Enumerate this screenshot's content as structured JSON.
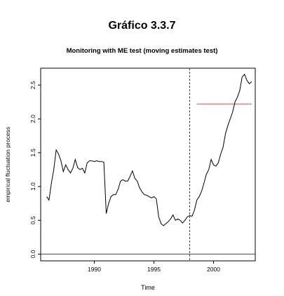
{
  "page": {
    "title": "Gráfico 3.3.7"
  },
  "chart_data": {
    "type": "line",
    "title": "Monitoring with ME test (moving estimates test)",
    "xlabel": "Time",
    "ylabel": "empirical fluctuation process",
    "xlim": [
      1985.5,
      2003.5
    ],
    "ylim": [
      -0.1,
      2.75
    ],
    "xticks": [
      1990,
      1995,
      2000
    ],
    "yticks": [
      0.0,
      0.5,
      1.0,
      1.5,
      2.0,
      2.5
    ],
    "ytick_labels": [
      "0.0",
      "0.5",
      "1.0",
      "1.5",
      "2.0",
      "2.5"
    ],
    "grid": false,
    "legend": "none",
    "series": [
      {
        "color": "#000000",
        "points": [
          [
            1986.0,
            0.85
          ],
          [
            1986.2,
            0.8
          ],
          [
            1986.4,
            1.05
          ],
          [
            1986.6,
            1.25
          ],
          [
            1986.8,
            1.54
          ],
          [
            1987.0,
            1.48
          ],
          [
            1987.2,
            1.38
          ],
          [
            1987.4,
            1.22
          ],
          [
            1987.6,
            1.32
          ],
          [
            1987.8,
            1.25
          ],
          [
            1988.0,
            1.2
          ],
          [
            1988.2,
            1.27
          ],
          [
            1988.4,
            1.4
          ],
          [
            1988.6,
            1.28
          ],
          [
            1988.8,
            1.25
          ],
          [
            1989.0,
            1.27
          ],
          [
            1989.2,
            1.2
          ],
          [
            1989.4,
            1.35
          ],
          [
            1989.6,
            1.38
          ],
          [
            1989.8,
            1.38
          ],
          [
            1990.0,
            1.37
          ],
          [
            1990.2,
            1.38
          ],
          [
            1990.4,
            1.37
          ],
          [
            1990.6,
            1.37
          ],
          [
            1990.8,
            1.36
          ],
          [
            1991.0,
            0.6
          ],
          [
            1991.2,
            0.75
          ],
          [
            1991.4,
            0.85
          ],
          [
            1991.6,
            0.88
          ],
          [
            1991.8,
            0.88
          ],
          [
            1992.0,
            0.96
          ],
          [
            1992.2,
            1.08
          ],
          [
            1992.4,
            1.1
          ],
          [
            1992.6,
            1.08
          ],
          [
            1992.8,
            1.08
          ],
          [
            1993.0,
            1.15
          ],
          [
            1993.2,
            1.23
          ],
          [
            1993.4,
            1.12
          ],
          [
            1993.6,
            1.08
          ],
          [
            1993.8,
            0.98
          ],
          [
            1994.0,
            0.92
          ],
          [
            1994.2,
            0.88
          ],
          [
            1994.4,
            0.87
          ],
          [
            1994.6,
            0.85
          ],
          [
            1994.8,
            0.83
          ],
          [
            1995.0,
            0.85
          ],
          [
            1995.2,
            0.82
          ],
          [
            1995.4,
            0.55
          ],
          [
            1995.6,
            0.45
          ],
          [
            1995.8,
            0.42
          ],
          [
            1996.0,
            0.45
          ],
          [
            1996.2,
            0.48
          ],
          [
            1996.4,
            0.52
          ],
          [
            1996.6,
            0.58
          ],
          [
            1996.8,
            0.5
          ],
          [
            1997.0,
            0.52
          ],
          [
            1997.2,
            0.5
          ],
          [
            1997.4,
            0.46
          ],
          [
            1997.6,
            0.5
          ],
          [
            1997.8,
            0.55
          ],
          [
            1998.0,
            0.57
          ],
          [
            1998.2,
            0.56
          ],
          [
            1998.4,
            0.65
          ],
          [
            1998.6,
            0.8
          ],
          [
            1998.8,
            0.85
          ],
          [
            1999.0,
            0.93
          ],
          [
            1999.2,
            1.05
          ],
          [
            1999.4,
            1.18
          ],
          [
            1999.6,
            1.25
          ],
          [
            1999.8,
            1.4
          ],
          [
            2000.0,
            1.32
          ],
          [
            2000.2,
            1.3
          ],
          [
            2000.4,
            1.35
          ],
          [
            2000.6,
            1.48
          ],
          [
            2000.8,
            1.58
          ],
          [
            2001.0,
            1.78
          ],
          [
            2001.2,
            1.9
          ],
          [
            2001.4,
            2.0
          ],
          [
            2001.6,
            2.1
          ],
          [
            2001.8,
            2.25
          ],
          [
            2002.0,
            2.32
          ],
          [
            2002.2,
            2.42
          ],
          [
            2002.4,
            2.62
          ],
          [
            2002.6,
            2.66
          ],
          [
            2002.8,
            2.57
          ],
          [
            2003.0,
            2.52
          ],
          [
            2003.2,
            2.55
          ]
        ]
      }
    ],
    "boundary": {
      "color": "#e04040",
      "x_start": 1998.6,
      "x_end": 2003.2,
      "y": 2.22
    },
    "monitoring_start": {
      "x": 1998.0,
      "color": "#444444"
    },
    "zero_line": {
      "y": 0.0,
      "color": "#444444"
    }
  }
}
